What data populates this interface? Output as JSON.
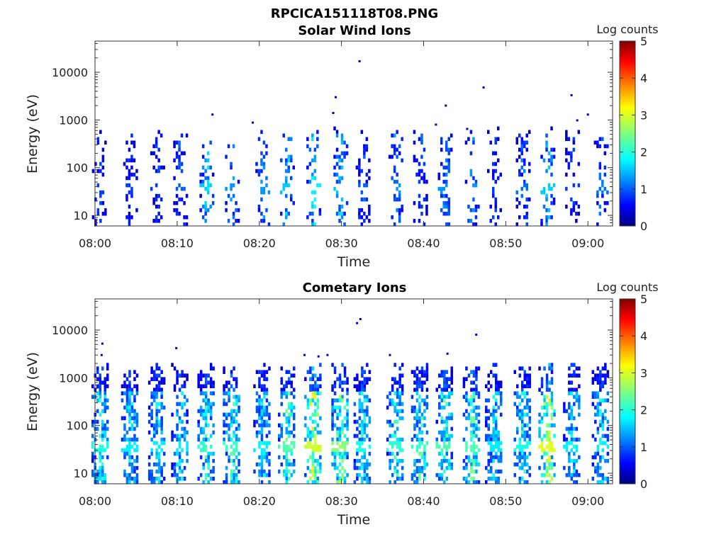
{
  "figure": {
    "filename_title": "RPCICA151118T08.PNG"
  },
  "colorbar": {
    "label": "Log counts",
    "ticks": [
      "0",
      "1",
      "2",
      "3",
      "4",
      "5"
    ],
    "range": [
      0,
      5
    ],
    "colormap": "jet"
  },
  "chart_data": [
    {
      "type": "heatmap",
      "title": "Solar Wind Ions",
      "xlabel": "Time",
      "ylabel": "Energy (eV)",
      "xticks": [
        "08:00",
        "08:10",
        "08:20",
        "08:30",
        "08:40",
        "08:50",
        "09:00"
      ],
      "xlim": [
        "08:00",
        "09:03"
      ],
      "yticks": [
        "10",
        "100",
        "1000",
        "10000"
      ],
      "yscale": "log",
      "ylim": [
        6,
        45000
      ],
      "bursts_minutes": [
        0.4,
        4.2,
        7.5,
        10.3,
        13.5,
        16.6,
        20.3,
        23.3,
        26.5,
        29.8,
        32.5,
        36.5,
        39.5,
        42.5,
        45.8,
        48.5,
        52.0,
        55.0,
        58.0,
        61.5
      ],
      "burst_log_counts_peak": [
        1.0,
        1.0,
        1.0,
        1.2,
        1.8,
        1.5,
        1.5,
        1.8,
        2.0,
        1.8,
        1.2,
        1.5,
        1.2,
        1.5,
        1.5,
        1.0,
        1.3,
        1.8,
        1.0,
        1.3
      ],
      "scattered_points": [
        {
          "t": 14.3,
          "e": 1300
        },
        {
          "t": 19.2,
          "e": 880
        },
        {
          "t": 29.0,
          "e": 1400
        },
        {
          "t": 29.3,
          "e": 3000
        },
        {
          "t": 32.2,
          "e": 17000
        },
        {
          "t": 41.5,
          "e": 800
        },
        {
          "t": 42.7,
          "e": 2000
        },
        {
          "t": 45.3,
          "e": 650
        },
        {
          "t": 47.3,
          "e": 4800
        },
        {
          "t": 58.0,
          "e": 3300
        },
        {
          "t": 58.7,
          "e": 980
        },
        {
          "t": 60.0,
          "e": 1300
        }
      ]
    },
    {
      "type": "heatmap",
      "title": "Cometary Ions",
      "xlabel": "Time",
      "ylabel": "Energy (eV)",
      "xticks": [
        "08:00",
        "08:10",
        "08:20",
        "08:30",
        "08:40",
        "08:50",
        "09:00"
      ],
      "xlim": [
        "08:00",
        "09:03"
      ],
      "yticks": [
        "10",
        "100",
        "1000",
        "10000"
      ],
      "yscale": "log",
      "ylim": [
        6,
        45000
      ],
      "bursts_minutes": [
        0.6,
        4.2,
        7.5,
        10.3,
        13.5,
        16.6,
        20.3,
        23.3,
        26.5,
        29.8,
        32.5,
        36.5,
        39.5,
        42.5,
        45.8,
        48.5,
        52.0,
        55.0,
        58.0,
        61.5
      ],
      "burst_log_counts_peak": [
        2.2,
        2.0,
        2.0,
        2.0,
        2.3,
        2.4,
        2.0,
        2.5,
        3.2,
        2.8,
        2.2,
        2.3,
        2.4,
        2.5,
        2.5,
        2.0,
        2.2,
        3.3,
        2.0,
        2.0
      ],
      "scattered_points": [
        {
          "t": 0.9,
          "e": 5200
        },
        {
          "t": 0.8,
          "e": 3000
        },
        {
          "t": 9.9,
          "e": 4200
        },
        {
          "t": 25.5,
          "e": 3000
        },
        {
          "t": 27.2,
          "e": 2800
        },
        {
          "t": 28.3,
          "e": 3000
        },
        {
          "t": 32.3,
          "e": 17000
        },
        {
          "t": 31.9,
          "e": 14000
        },
        {
          "t": 35.9,
          "e": 3000
        },
        {
          "t": 42.9,
          "e": 3200
        },
        {
          "t": 46.4,
          "e": 8000
        }
      ]
    }
  ]
}
